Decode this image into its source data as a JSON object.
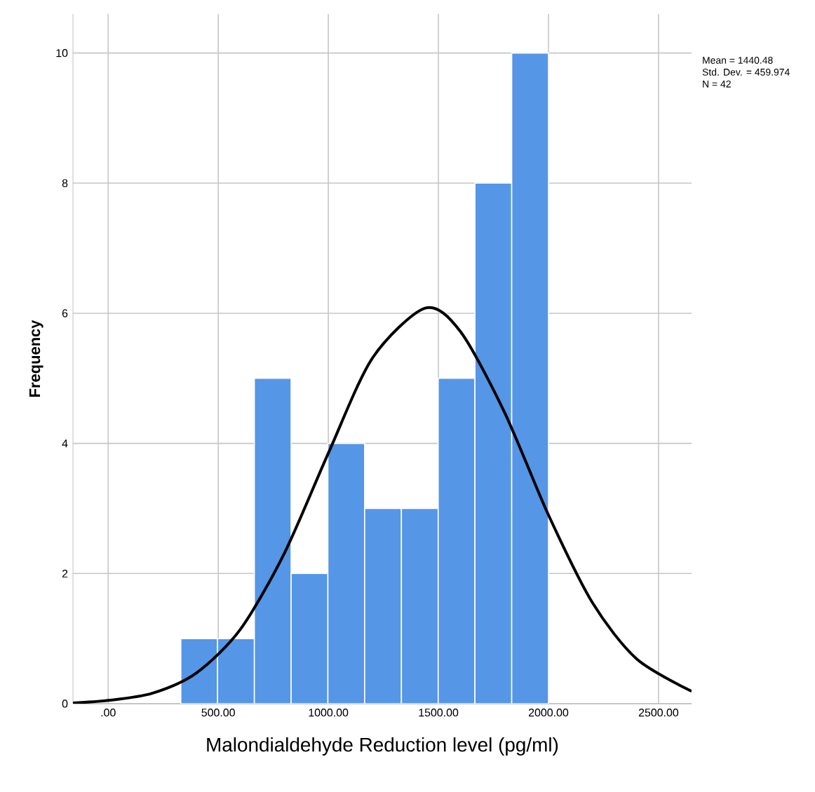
{
  "chart_data": {
    "type": "histogram",
    "xlabel": "Malondialdehyde Reduction level (pg/ml)",
    "ylabel": "Frequency",
    "bins": [
      330,
      497,
      664,
      831,
      998,
      1165,
      1332,
      1499,
      1666,
      1833,
      2000
    ],
    "values": [
      1,
      1,
      5,
      2,
      4,
      3,
      3,
      5,
      8,
      10
    ],
    "color": "#5596e6",
    "series": [
      {
        "type": "line",
        "color": "#000000",
        "x": [
          -160,
          0,
          200,
          400,
          600,
          800,
          1000,
          1200,
          1440,
          1600,
          1800,
          2000,
          2200,
          2400,
          2650
        ],
        "values": [
          0.01,
          0.05,
          0.16,
          0.47,
          1.14,
          2.31,
          3.85,
          5.31,
          6.08,
          5.72,
          4.48,
          2.9,
          1.55,
          0.69,
          0.19
        ]
      }
    ],
    "xlim": [
      -160,
      2650
    ],
    "ylim": [
      0,
      10.6
    ],
    "xticks": [
      {
        "value": 0,
        "label": ".00"
      },
      {
        "value": 500,
        "label": "500.00"
      },
      {
        "value": 1000,
        "label": "1000.00"
      },
      {
        "value": 1500,
        "label": "1500.00"
      },
      {
        "value": 2000,
        "label": "2000.00"
      },
      {
        "value": 2500,
        "label": "2500.00"
      }
    ],
    "yticks": [
      0,
      2,
      4,
      6,
      8,
      10
    ],
    "grid": true,
    "annotations": [
      "Mean = 1440.48",
      "Std. Dev. = 459.974",
      "N = 42"
    ]
  }
}
